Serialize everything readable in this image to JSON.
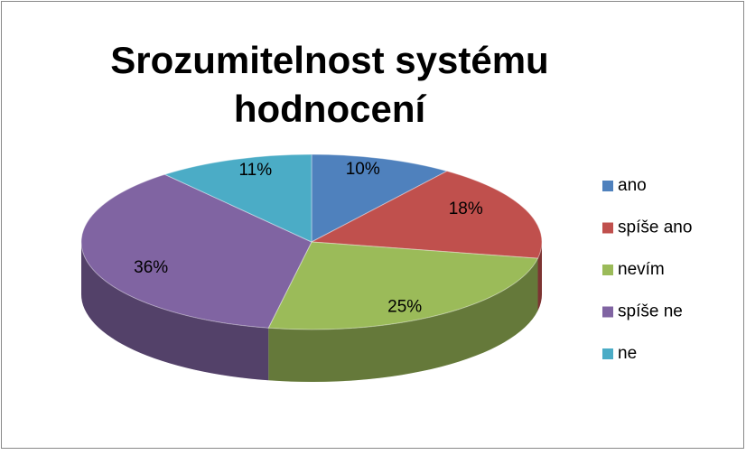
{
  "chart_data": {
    "type": "pie",
    "title": "Srozumitelnost systému hodnocení",
    "categories": [
      "ano",
      "spíše ano",
      "nevím",
      "spíše ne",
      "ne"
    ],
    "values": [
      10,
      18,
      25,
      36,
      11
    ],
    "value_labels": [
      "10%",
      "18%",
      "25%",
      "36%",
      "11%"
    ],
    "colors": [
      "#4f81bd",
      "#c0504d",
      "#9bbb59",
      "#8064a2",
      "#4bacc6"
    ],
    "legend": "right"
  }
}
